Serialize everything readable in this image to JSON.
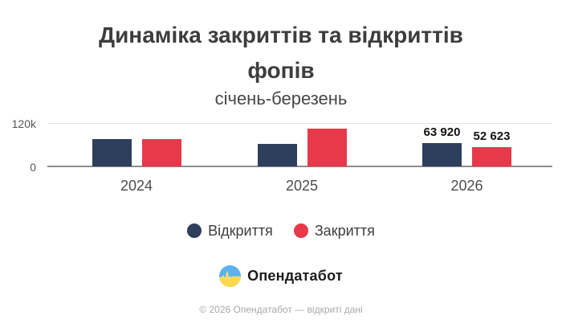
{
  "title": "Динаміка закриттів та відкриттів фопів",
  "subtitle": "січень-березень",
  "chart_data": {
    "type": "bar",
    "categories": [
      "2024",
      "2025",
      "2026"
    ],
    "series": [
      {
        "key": "openings",
        "name": "Відкриття",
        "color": "#2e3f5d",
        "values": [
          75500,
          62000,
          63920
        ],
        "labels": [
          "",
          "",
          "63 920"
        ]
      },
      {
        "key": "closings",
        "name": "Закриття",
        "color": "#e7394a",
        "values": [
          76000,
          105000,
          52623
        ],
        "labels": [
          "",
          "",
          "52 623"
        ]
      }
    ],
    "ylim": [
      0,
      120000
    ],
    "yticks": [
      {
        "value": 0,
        "label": "0"
      },
      {
        "value": 120000,
        "label": "120k"
      }
    ],
    "grid": "top-gridline-only",
    "legend_position": "bottom"
  },
  "brand": {
    "name": "Опендатабот",
    "logo_icon": "pulse-circle-icon",
    "logo_colors": {
      "top": "#5cb3ed",
      "bottom": "#ffd94d",
      "pulse": "#ffe071"
    }
  },
  "footer": "© 2026 Опендатабот — відкриті дані"
}
